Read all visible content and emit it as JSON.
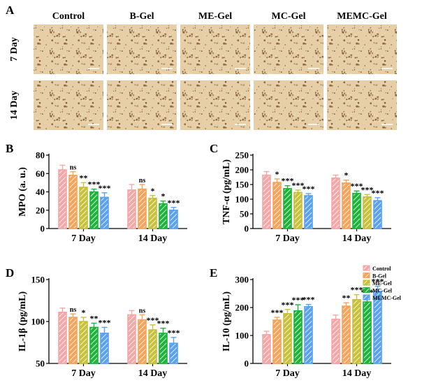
{
  "panel_a": {
    "label": "A",
    "columns": [
      "Control",
      "B-Gel",
      "ME-Gel",
      "MC-Gel",
      "MEMC-Gel"
    ],
    "rows": [
      "7 Day",
      "14 Day"
    ]
  },
  "style": {
    "colors": [
      "#f4a7a7",
      "#f5a45b",
      "#c7c13b",
      "#1eb33a",
      "#5aa2f0"
    ],
    "hatch_stroke": "#ffffff",
    "tissue_bg": "#e6cfa6",
    "tissue_dark": "#6b3c17",
    "tissue_light": "#f3e5c8",
    "scale_bar": "#ffffff"
  },
  "legend": {
    "entries": [
      "Control",
      "B-Gel",
      "ME-Gel",
      "MC-Gel",
      "MEMC-Gel"
    ],
    "placement": "right"
  },
  "chart_data": [
    {
      "panel": "B",
      "type": "bar",
      "title": "",
      "ylabel": "MPO (a. u.)",
      "xlabel": "",
      "categories": [
        "7 Day",
        "14 Day"
      ],
      "ylim": [
        0,
        80
      ],
      "yticks": [
        0,
        20,
        40,
        60,
        80
      ],
      "series": [
        {
          "name": "Control",
          "values": [
            64,
            42
          ],
          "errors": [
            5,
            6
          ],
          "sig": [
            "",
            ""
          ]
        },
        {
          "name": "B-Gel",
          "values": [
            58,
            43
          ],
          "errors": [
            4,
            5
          ],
          "sig": [
            "ns",
            "ns"
          ]
        },
        {
          "name": "ME-Gel",
          "values": [
            45,
            33
          ],
          "errors": [
            5,
            3
          ],
          "sig": [
            "**",
            "*"
          ]
        },
        {
          "name": "MC-Gel",
          "values": [
            40,
            27
          ],
          "errors": [
            3,
            3
          ],
          "sig": [
            "***",
            "*"
          ]
        },
        {
          "name": "MEMC-Gel",
          "values": [
            34,
            20
          ],
          "errors": [
            5,
            3
          ],
          "sig": [
            "***",
            "***"
          ]
        }
      ]
    },
    {
      "panel": "C",
      "type": "bar",
      "title": "",
      "ylabel": "TNF-α (pg/mL)",
      "xlabel": "",
      "categories": [
        "7 Day",
        "14 Day"
      ],
      "ylim": [
        0,
        250
      ],
      "yticks": [
        0,
        50,
        100,
        150,
        200,
        250
      ],
      "series": [
        {
          "name": "Control",
          "values": [
            182,
            172
          ],
          "errors": [
            12,
            10
          ],
          "sig": [
            "",
            ""
          ]
        },
        {
          "name": "B-Gel",
          "values": [
            157,
            155
          ],
          "errors": [
            12,
            10
          ],
          "sig": [
            "*",
            "*"
          ]
        },
        {
          "name": "MC-Gel",
          "values": [
            136,
            120
          ],
          "errors": [
            10,
            8
          ],
          "sig": [
            "***",
            "***"
          ]
        },
        {
          "name": "ME-Gel",
          "values": [
            123,
            108
          ],
          "errors": [
            8,
            8
          ],
          "sig": [
            "***",
            "***"
          ]
        },
        {
          "name": "MEMC-Gel",
          "values": [
            112,
            95
          ],
          "errors": [
            7,
            10
          ],
          "sig": [
            "***",
            "***"
          ]
        }
      ]
    },
    {
      "panel": "D",
      "type": "bar",
      "title": "",
      "ylabel": "IL-1β (pg/mL)",
      "xlabel": "",
      "categories": [
        "7 Day",
        "14 Day"
      ],
      "ylim": [
        50,
        150
      ],
      "yticks": [
        50,
        100,
        150
      ],
      "series": [
        {
          "name": "Control",
          "values": [
            111,
            108
          ],
          "errors": [
            5,
            5
          ],
          "sig": [
            "",
            ""
          ]
        },
        {
          "name": "B-Gel",
          "values": [
            105,
            102
          ],
          "errors": [
            4,
            6
          ],
          "sig": [
            "ns",
            "ns"
          ]
        },
        {
          "name": "ME-Gel",
          "values": [
            100,
            90
          ],
          "errors": [
            5,
            6
          ],
          "sig": [
            "*",
            "***"
          ]
        },
        {
          "name": "MC-Gel",
          "values": [
            93,
            86
          ],
          "errors": [
            5,
            6
          ],
          "sig": [
            "**",
            "***"
          ]
        },
        {
          "name": "MEMC-Gel",
          "values": [
            86,
            74
          ],
          "errors": [
            7,
            7
          ],
          "sig": [
            "***",
            "***"
          ]
        }
      ]
    },
    {
      "panel": "E",
      "type": "bar",
      "title": "",
      "ylabel": "IL-10 (pg/mL)",
      "xlabel": "",
      "categories": [
        "7 Day",
        "14 Day"
      ],
      "ylim": [
        0,
        300
      ],
      "yticks": [
        0,
        100,
        200,
        300
      ],
      "series": [
        {
          "name": "Control",
          "values": [
            103,
            158
          ],
          "errors": [
            12,
            15
          ],
          "sig": [
            "",
            ""
          ]
        },
        {
          "name": "B-Gel",
          "values": [
            155,
            205
          ],
          "errors": [
            10,
            12
          ],
          "sig": [
            "***",
            "**"
          ]
        },
        {
          "name": "ME-Gel",
          "values": [
            178,
            228
          ],
          "errors": [
            15,
            18
          ],
          "sig": [
            "***",
            "***"
          ]
        },
        {
          "name": "MC-Gel",
          "values": [
            188,
            220
          ],
          "errors": [
            22,
            18
          ],
          "sig": [
            "***",
            "***"
          ]
        },
        {
          "name": "MEMC-Gel",
          "values": [
            203,
            258
          ],
          "errors": [
            8,
            18
          ],
          "sig": [
            "***",
            "***"
          ]
        }
      ]
    }
  ]
}
